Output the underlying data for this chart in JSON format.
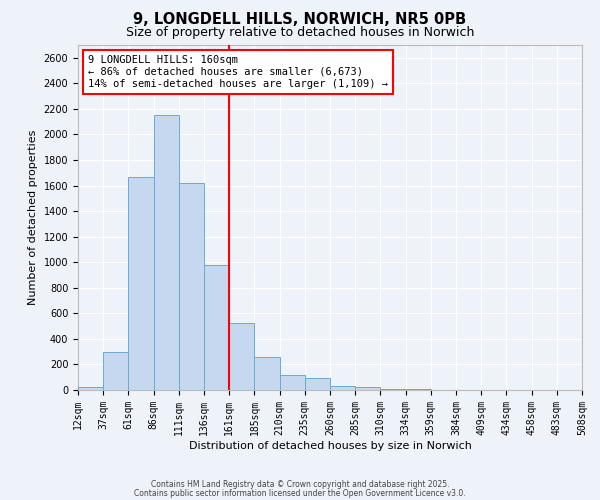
{
  "title": "9, LONGDELL HILLS, NORWICH, NR5 0PB",
  "subtitle": "Size of property relative to detached houses in Norwich",
  "bar_values": [
    20,
    295,
    1670,
    2150,
    1620,
    975,
    525,
    255,
    120,
    95,
    35,
    25,
    10,
    5,
    3,
    3,
    2,
    1,
    0,
    1
  ],
  "categories": [
    "12sqm",
    "37sqm",
    "61sqm",
    "86sqm",
    "111sqm",
    "136sqm",
    "161sqm",
    "185sqm",
    "210sqm",
    "235sqm",
    "260sqm",
    "285sqm",
    "310sqm",
    "334sqm",
    "359sqm",
    "384sqm",
    "409sqm",
    "434sqm",
    "458sqm",
    "483sqm",
    "508sqm"
  ],
  "bar_color": "#c5d8f0",
  "bar_edge_color": "#6aaad4",
  "vline_color": "red",
  "annotation_text": "9 LONGDELL HILLS: 160sqm\n← 86% of detached houses are smaller (6,673)\n14% of semi-detached houses are larger (1,109) →",
  "annotation_box_color": "white",
  "annotation_box_edge": "red",
  "ylabel": "Number of detached properties",
  "xlabel": "Distribution of detached houses by size in Norwich",
  "ylim": [
    0,
    2700
  ],
  "yticks": [
    0,
    200,
    400,
    600,
    800,
    1000,
    1200,
    1400,
    1600,
    1800,
    2000,
    2200,
    2400,
    2600
  ],
  "footer_line1": "Contains HM Land Registry data © Crown copyright and database right 2025.",
  "footer_line2": "Contains public sector information licensed under the Open Government Licence v3.0.",
  "background_color": "#eef2f9",
  "grid_color": "#ffffff",
  "title_fontsize": 10.5,
  "subtitle_fontsize": 9,
  "axis_label_fontsize": 8,
  "tick_fontsize": 7,
  "footer_fontsize": 5.5
}
